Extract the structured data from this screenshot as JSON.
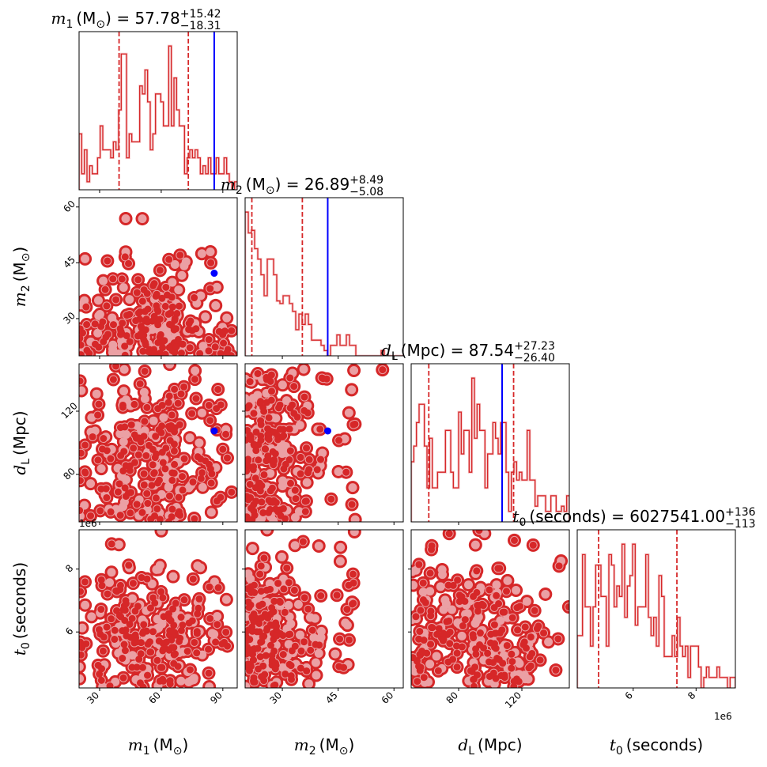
{
  "chart_data": {
    "type": "corner",
    "colors": {
      "samples": "#d62728",
      "contour_fill": "#eba0a4",
      "truth": "#0000ff"
    },
    "parameters": [
      {
        "symbol": "m",
        "sub": "1",
        "unit": "M",
        "unit_sub": "⊙",
        "title_value": "57.78",
        "err_plus": "+15.42",
        "err_minus": "−18.31",
        "range": [
          20,
          97
        ],
        "ticks": [
          30,
          60,
          90
        ],
        "tick_labels": [
          "30",
          "60",
          "90"
        ],
        "quantiles": [
          39.47,
          73.2
        ],
        "truth": 85.8,
        "hist": [
          21,
          6,
          15,
          3,
          9,
          6,
          6,
          12,
          24,
          15,
          15,
          15,
          12,
          18,
          15,
          30,
          51,
          51,
          12,
          21,
          18,
          18,
          18,
          39,
          36,
          45,
          33,
          15,
          21,
          36,
          36,
          33,
          24,
          24,
          54,
          24,
          42,
          30,
          24,
          24,
          6,
          12,
          15,
          12,
          15,
          12,
          6,
          9,
          6,
          12,
          6,
          6,
          12,
          6,
          6,
          12,
          6,
          3,
          0,
          3
        ]
      },
      {
        "symbol": "m",
        "sub": "2",
        "unit": "M",
        "unit_sub": "⊙",
        "title_value": "26.89",
        "err_plus": "+8.49",
        "err_minus": "−5.08",
        "range": [
          20,
          62.5
        ],
        "ticks": [
          30,
          45,
          60
        ],
        "tick_labels": [
          "30",
          "45",
          "60"
        ],
        "quantiles": [
          21.81,
          35.38
        ],
        "truth": 42.2,
        "hist": [
          55,
          47,
          48,
          41,
          37,
          31,
          23,
          37,
          37,
          31,
          21,
          20,
          23,
          23,
          20,
          17,
          10,
          16,
          12,
          16,
          12,
          6,
          6,
          6,
          4,
          2,
          0,
          4,
          4,
          8,
          4,
          4,
          8,
          4,
          4,
          0,
          0,
          0,
          0,
          0,
          0,
          0,
          0,
          2,
          0,
          0,
          0,
          0,
          0,
          0
        ]
      },
      {
        "symbol": "d",
        "sub": "L",
        "unit": "Mpc",
        "unit_sub": "",
        "title_value": "87.54",
        "err_plus": "+27.23",
        "err_minus": "−26.40",
        "range": [
          50,
          150
        ],
        "ticks": [
          80,
          120
        ],
        "tick_labels": [
          "80",
          "120"
        ],
        "quantiles": [
          61.14,
          114.77
        ],
        "truth": 107.5,
        "hist": [
          23,
          29,
          38,
          45,
          45,
          29,
          13,
          32,
          13,
          13,
          19,
          19,
          19,
          35,
          35,
          19,
          13,
          13,
          42,
          26,
          35,
          35,
          19,
          55,
          32,
          45,
          35,
          35,
          13,
          26,
          26,
          38,
          32,
          26,
          38,
          38,
          19,
          4,
          19,
          23,
          16,
          19,
          16,
          16,
          35,
          16,
          16,
          6,
          10,
          10,
          10,
          4,
          4,
          10,
          10,
          4,
          4,
          6,
          4,
          10
        ]
      },
      {
        "symbol": "t",
        "sub": "0",
        "unit": "seconds",
        "unit_sub": "",
        "title_value": "6027541.00",
        "err_plus": "+136",
        "err_minus": "−113",
        "range": [
          4220000,
          9250000
        ],
        "ticks": [
          6000000,
          8000000
        ],
        "tick_labels": [
          "6",
          "8"
        ],
        "offset_text": "1e6",
        "quantiles": [
          4900000,
          7390000
        ],
        "truth": null,
        "hist": [
          20,
          20,
          51,
          31,
          31,
          16,
          31,
          47,
          47,
          35,
          35,
          16,
          51,
          47,
          31,
          39,
          35,
          55,
          27,
          39,
          43,
          55,
          24,
          31,
          31,
          31,
          51,
          27,
          20,
          27,
          16,
          43,
          35,
          12,
          12,
          12,
          20,
          12,
          27,
          16,
          12,
          16,
          4,
          16,
          16,
          16,
          8,
          0,
          4,
          8,
          4,
          4,
          4,
          8,
          4,
          4,
          4,
          0,
          4,
          4
        ]
      }
    ]
  }
}
